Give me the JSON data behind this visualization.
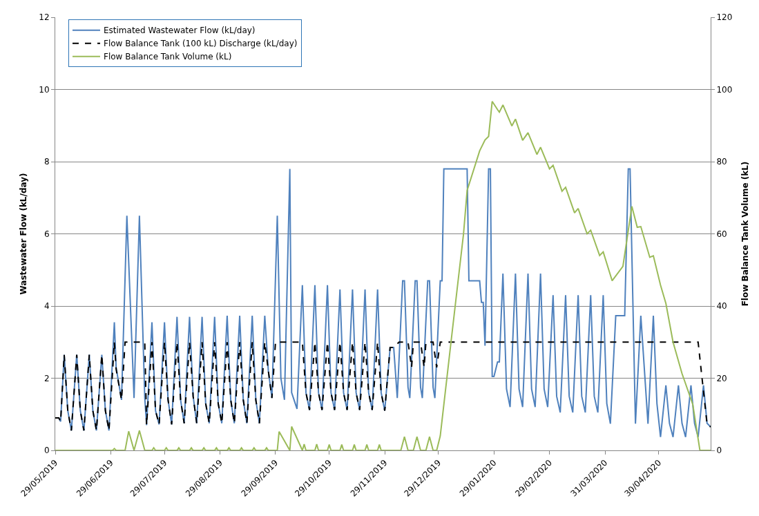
{
  "chart_data": {
    "type": "line",
    "ylabel": "Wastewater Flow (kL/day)",
    "y2label": "Flow Balance Tank Volume (kL)",
    "xlim": [
      "2019-05-29",
      "2020-05-29"
    ],
    "xticks": [
      {
        "value": "2019-05-29",
        "label": "29/05/2019"
      },
      {
        "value": "2019-06-29",
        "label": "29/06/2019"
      },
      {
        "value": "2019-07-29",
        "label": "29/07/2019"
      },
      {
        "value": "2019-08-29",
        "label": "29/08/2019"
      },
      {
        "value": "2019-09-29",
        "label": "29/09/2019"
      },
      {
        "value": "2019-10-29",
        "label": "29/10/2019"
      },
      {
        "value": "2019-11-29",
        "label": "29/11/2019"
      },
      {
        "value": "2019-12-29",
        "label": "29/12/2019"
      },
      {
        "value": "2020-01-29",
        "label": "29/01/2020"
      },
      {
        "value": "2020-02-29",
        "label": "29/02/2020"
      },
      {
        "value": "2020-03-31",
        "label": "31/03/2020"
      },
      {
        "value": "2020-04-30",
        "label": "30/04/2020"
      }
    ],
    "ylim": [
      0,
      12
    ],
    "yticks": [
      0,
      2,
      4,
      6,
      8,
      10,
      12
    ],
    "y2lim": [
      0,
      120
    ],
    "y2ticks": [
      0,
      20,
      40,
      60,
      80,
      100,
      120
    ],
    "grid": "y",
    "legend": "top left",
    "series": [
      {
        "name": "Estimated Wastewater Flow (kL/day)",
        "color": "#4f81bd",
        "line_style": "solid",
        "x": [
          "2019-05-29",
          "2019-05-31",
          "2019-06-01",
          "2019-06-03",
          "2019-06-05",
          "2019-06-07",
          "2019-06-10",
          "2019-06-12",
          "2019-06-14",
          "2019-06-17",
          "2019-06-19",
          "2019-06-21",
          "2019-06-24",
          "2019-06-26",
          "2019-06-28",
          "2019-07-01",
          "2019-07-02",
          "2019-07-05",
          "2019-07-08",
          "2019-07-12",
          "2019-07-15",
          "2019-07-18",
          "2019-07-19",
          "2019-07-22",
          "2019-07-24",
          "2019-07-26",
          "2019-07-29",
          "2019-07-31",
          "2019-08-02",
          "2019-08-05",
          "2019-08-07",
          "2019-08-09",
          "2019-08-12",
          "2019-08-14",
          "2019-08-16",
          "2019-08-19",
          "2019-08-21",
          "2019-08-23",
          "2019-08-26",
          "2019-08-28",
          "2019-08-30",
          "2019-09-02",
          "2019-09-04",
          "2019-09-06",
          "2019-09-09",
          "2019-09-11",
          "2019-09-13",
          "2019-09-16",
          "2019-09-18",
          "2019-09-20",
          "2019-09-23",
          "2019-09-25",
          "2019-09-27",
          "2019-09-30",
          "2019-10-02",
          "2019-10-04",
          "2019-10-07",
          "2019-10-08",
          "2019-10-11",
          "2019-10-14",
          "2019-10-16",
          "2019-10-18",
          "2019-10-21",
          "2019-10-23",
          "2019-10-25",
          "2019-10-28",
          "2019-10-30",
          "2019-11-01",
          "2019-11-04",
          "2019-11-06",
          "2019-11-08",
          "2019-11-11",
          "2019-11-13",
          "2019-11-15",
          "2019-11-18",
          "2019-11-20",
          "2019-11-22",
          "2019-11-25",
          "2019-11-27",
          "2019-11-29",
          "2019-12-02",
          "2019-12-04",
          "2019-12-06",
          "2019-12-09",
          "2019-12-10",
          "2019-12-12",
          "2019-12-13",
          "2019-12-16",
          "2019-12-17",
          "2019-12-19",
          "2019-12-20",
          "2019-12-23",
          "2019-12-24",
          "2019-12-26",
          "2019-12-27",
          "2019-12-30",
          "2019-12-31",
          "2020-01-01",
          "2020-01-14",
          "2020-01-15",
          "2020-01-21",
          "2020-01-22",
          "2020-01-23",
          "2020-01-24",
          "2020-01-26",
          "2020-01-27",
          "2020-01-28",
          "2020-01-29",
          "2020-01-31",
          "2020-02-01",
          "2020-02-03",
          "2020-02-05",
          "2020-02-07",
          "2020-02-10",
          "2020-02-12",
          "2020-02-14",
          "2020-02-17",
          "2020-02-19",
          "2020-02-21",
          "2020-02-24",
          "2020-02-26",
          "2020-02-28",
          "2020-03-02",
          "2020-03-04",
          "2020-03-06",
          "2020-03-09",
          "2020-03-11",
          "2020-03-13",
          "2020-03-16",
          "2020-03-18",
          "2020-03-20",
          "2020-03-23",
          "2020-03-25",
          "2020-03-27",
          "2020-03-30",
          "2020-04-01",
          "2020-04-03",
          "2020-04-06",
          "2020-04-11",
          "2020-04-13",
          "2020-04-14",
          "2020-04-17",
          "2020-04-20",
          "2020-04-24",
          "2020-04-27",
          "2020-04-29",
          "2020-05-01",
          "2020-05-04",
          "2020-05-06",
          "2020-05-08",
          "2020-05-11",
          "2020-05-13",
          "2020-05-15",
          "2020-05-18",
          "2020-05-20",
          "2020-05-22",
          "2020-05-25",
          "2020-05-27",
          "2020-05-29"
        ],
        "values": [
          0.9,
          0.9,
          0.8,
          2.65,
          1.1,
          0.55,
          2.65,
          1.1,
          0.55,
          2.65,
          1.1,
          0.55,
          2.65,
          1.1,
          0.55,
          3.55,
          2.3,
          1.4,
          6.5,
          1.45,
          6.5,
          1.45,
          0.7,
          3.55,
          1.1,
          0.72,
          3.55,
          1.4,
          0.72,
          3.7,
          1.4,
          0.75,
          3.7,
          1.5,
          0.75,
          3.7,
          1.3,
          0.75,
          3.7,
          1.3,
          0.75,
          3.73,
          1.4,
          0.75,
          3.73,
          1.4,
          0.75,
          3.73,
          1.4,
          0.75,
          3.73,
          2.2,
          1.45,
          6.5,
          2.0,
          1.4,
          7.8,
          1.6,
          1.15,
          4.58,
          1.6,
          1.12,
          4.58,
          1.6,
          1.12,
          4.58,
          1.6,
          1.12,
          4.46,
          1.6,
          1.12,
          4.46,
          1.6,
          1.12,
          4.46,
          1.6,
          1.12,
          4.46,
          1.6,
          1.1,
          2.85,
          2.85,
          1.45,
          4.7,
          4.7,
          1.75,
          1.45,
          4.7,
          4.7,
          1.75,
          1.45,
          4.7,
          4.7,
          1.75,
          1.45,
          4.7,
          4.7,
          7.8,
          7.8,
          4.7,
          4.7,
          4.1,
          4.1,
          2.9,
          7.8,
          7.8,
          2.05,
          2.05,
          2.45,
          2.45,
          4.9,
          1.7,
          1.2,
          4.9,
          1.7,
          1.2,
          4.9,
          1.7,
          1.2,
          4.9,
          1.7,
          1.2,
          4.3,
          1.5,
          1.05,
          4.3,
          1.5,
          1.05,
          4.3,
          1.5,
          1.05,
          4.3,
          1.5,
          1.05,
          4.3,
          1.3,
          0.74,
          3.73,
          3.73,
          7.8,
          7.8,
          0.74,
          3.73,
          0.74,
          3.73,
          1.3,
          0.37,
          1.8,
          0.75,
          0.37,
          1.8,
          0.75,
          0.37,
          1.8,
          0.75,
          0.37,
          1.8,
          0.75,
          0.65
        ]
      },
      {
        "name": "Flow Balance Tank (100 kL) Discharge (kL/day)",
        "color": "#000000",
        "line_style": "dashed",
        "x": [
          "2019-05-29",
          "2019-05-31",
          "2019-06-01",
          "2019-06-03",
          "2019-06-05",
          "2019-06-07",
          "2019-06-10",
          "2019-06-12",
          "2019-06-14",
          "2019-06-17",
          "2019-06-19",
          "2019-06-21",
          "2019-06-24",
          "2019-06-26",
          "2019-06-28",
          "2019-07-01",
          "2019-07-02",
          "2019-07-05",
          "2019-07-07",
          "2019-07-18",
          "2019-07-19",
          "2019-07-22",
          "2019-07-24",
          "2019-07-26",
          "2019-07-29",
          "2019-07-31",
          "2019-08-02",
          "2019-08-05",
          "2019-08-07",
          "2019-08-09",
          "2019-08-12",
          "2019-08-14",
          "2019-08-16",
          "2019-08-19",
          "2019-08-21",
          "2019-08-23",
          "2019-08-26",
          "2019-08-28",
          "2019-08-30",
          "2019-09-02",
          "2019-09-04",
          "2019-09-06",
          "2019-09-09",
          "2019-09-11",
          "2019-09-13",
          "2019-09-16",
          "2019-09-18",
          "2019-09-20",
          "2019-09-23",
          "2019-09-25",
          "2019-09-27",
          "2019-09-29",
          "2019-10-14",
          "2019-10-16",
          "2019-10-18",
          "2019-10-21",
          "2019-10-23",
          "2019-10-25",
          "2019-10-28",
          "2019-10-30",
          "2019-11-01",
          "2019-11-04",
          "2019-11-06",
          "2019-11-08",
          "2019-11-11",
          "2019-11-13",
          "2019-11-15",
          "2019-11-18",
          "2019-11-20",
          "2019-11-22",
          "2019-11-25",
          "2019-11-27",
          "2019-11-29",
          "2019-12-02",
          "2019-12-04",
          "2019-12-07",
          "2019-12-12",
          "2019-12-14",
          "2019-12-15",
          "2019-12-19",
          "2019-12-21",
          "2019-12-22",
          "2019-12-26",
          "2019-12-28",
          "2019-12-30",
          "2020-05-22",
          "2020-05-27",
          "2020-05-29"
        ],
        "values": [
          0.9,
          0.9,
          0.8,
          2.65,
          1.1,
          0.55,
          2.65,
          1.1,
          0.55,
          2.65,
          1.1,
          0.55,
          2.65,
          1.1,
          0.55,
          3.0,
          2.25,
          1.4,
          3.0,
          3.0,
          0.7,
          3.0,
          1.1,
          0.72,
          3.0,
          1.4,
          0.72,
          3.0,
          1.4,
          0.75,
          3.0,
          1.5,
          0.75,
          3.0,
          1.3,
          0.75,
          3.0,
          1.3,
          0.75,
          3.0,
          1.4,
          0.75,
          3.0,
          1.4,
          0.75,
          3.0,
          1.4,
          0.75,
          3.0,
          2.2,
          1.45,
          3.0,
          3.0,
          1.6,
          1.12,
          3.0,
          1.6,
          1.12,
          3.0,
          1.6,
          1.12,
          3.0,
          1.6,
          1.12,
          3.0,
          1.6,
          1.12,
          3.0,
          1.6,
          1.12,
          3.0,
          1.6,
          1.1,
          2.85,
          2.85,
          3.0,
          3.0,
          2.3,
          3.0,
          3.0,
          2.3,
          3.0,
          3.0,
          2.3,
          3.0,
          3.0,
          0.72,
          0.65
        ]
      },
      {
        "name": "Flow Balance Tank Volume (kL)",
        "color": "#9bbb59",
        "line_style": "solid",
        "axis": "y2",
        "x": [
          "2019-05-29",
          "2019-06-30",
          "2019-07-01",
          "2019-07-02",
          "2019-07-07",
          "2019-07-09",
          "2019-07-12",
          "2019-07-15",
          "2019-07-18",
          "2019-07-22",
          "2019-07-23",
          "2019-07-24",
          "2019-07-29",
          "2019-07-30",
          "2019-07-31",
          "2019-08-05",
          "2019-08-06",
          "2019-08-07",
          "2019-08-12",
          "2019-08-13",
          "2019-08-14",
          "2019-08-19",
          "2019-08-20",
          "2019-08-21",
          "2019-08-26",
          "2019-08-27",
          "2019-08-28",
          "2019-09-02",
          "2019-09-03",
          "2019-09-04",
          "2019-09-09",
          "2019-09-10",
          "2019-09-11",
          "2019-09-16",
          "2019-09-17",
          "2019-09-18",
          "2019-09-23",
          "2019-09-24",
          "2019-09-25",
          "2019-09-30",
          "2019-10-01",
          "2019-10-07",
          "2019-10-08",
          "2019-10-14",
          "2019-10-15",
          "2019-10-16",
          "2019-10-21",
          "2019-10-22",
          "2019-10-23",
          "2019-10-28",
          "2019-10-29",
          "2019-10-30",
          "2019-11-04",
          "2019-11-05",
          "2019-11-06",
          "2019-11-11",
          "2019-11-12",
          "2019-11-13",
          "2019-11-18",
          "2019-11-19",
          "2019-11-20",
          "2019-11-25",
          "2019-11-26",
          "2019-11-27",
          "2019-12-08",
          "2019-12-10",
          "2019-12-12",
          "2019-12-15",
          "2019-12-17",
          "2019-12-19",
          "2019-12-22",
          "2019-12-24",
          "2019-12-26",
          "2019-12-28",
          "2019-12-30",
          "2020-01-05",
          "2020-01-12",
          "2020-01-14",
          "2020-01-21",
          "2020-01-24",
          "2020-01-26",
          "2020-01-28",
          "2020-01-31",
          "2020-02-01",
          "2020-02-03",
          "2020-02-08",
          "2020-02-10",
          "2020-02-14",
          "2020-02-17",
          "2020-02-22",
          "2020-02-24",
          "2020-02-29",
          "2020-03-02",
          "2020-03-07",
          "2020-03-09",
          "2020-03-14",
          "2020-03-16",
          "2020-03-21",
          "2020-03-23",
          "2020-03-28",
          "2020-03-30",
          "2020-04-04",
          "2020-04-10",
          "2020-04-15",
          "2020-04-18",
          "2020-04-20",
          "2020-04-25",
          "2020-04-27",
          "2020-05-01",
          "2020-05-04",
          "2020-05-08",
          "2020-05-13",
          "2020-05-19",
          "2020-05-23",
          "2020-05-29"
        ],
        "values": [
          0,
          0,
          0.5,
          0,
          0,
          5.3,
          0,
          5.5,
          0,
          0,
          0.7,
          0,
          0,
          0.7,
          0,
          0,
          0.7,
          0,
          0,
          0.7,
          0,
          0,
          0.7,
          0,
          0,
          0.7,
          0,
          0,
          0.7,
          0,
          0,
          0.7,
          0,
          0,
          0.7,
          0,
          0,
          0.7,
          0,
          0,
          5.2,
          0,
          6.6,
          0,
          1.7,
          0,
          0,
          1.7,
          0,
          0,
          1.6,
          0,
          0,
          1.6,
          0,
          0,
          1.6,
          0,
          0,
          1.6,
          0,
          0,
          1.6,
          0,
          0,
          3.8,
          0,
          0,
          3.8,
          0,
          0,
          3.8,
          0,
          0,
          4,
          30,
          60,
          72,
          83,
          86,
          87,
          96.7,
          94.4,
          93.7,
          95.7,
          89.9,
          91.8,
          85.9,
          88,
          82,
          84,
          78,
          79,
          71.8,
          72.9,
          65.8,
          67,
          60,
          61,
          54,
          55,
          47,
          51,
          67.6,
          61.8,
          62,
          53.5,
          53.9,
          45.8,
          40.7,
          30,
          21.3,
          12.8,
          0,
          0
        ]
      }
    ]
  }
}
